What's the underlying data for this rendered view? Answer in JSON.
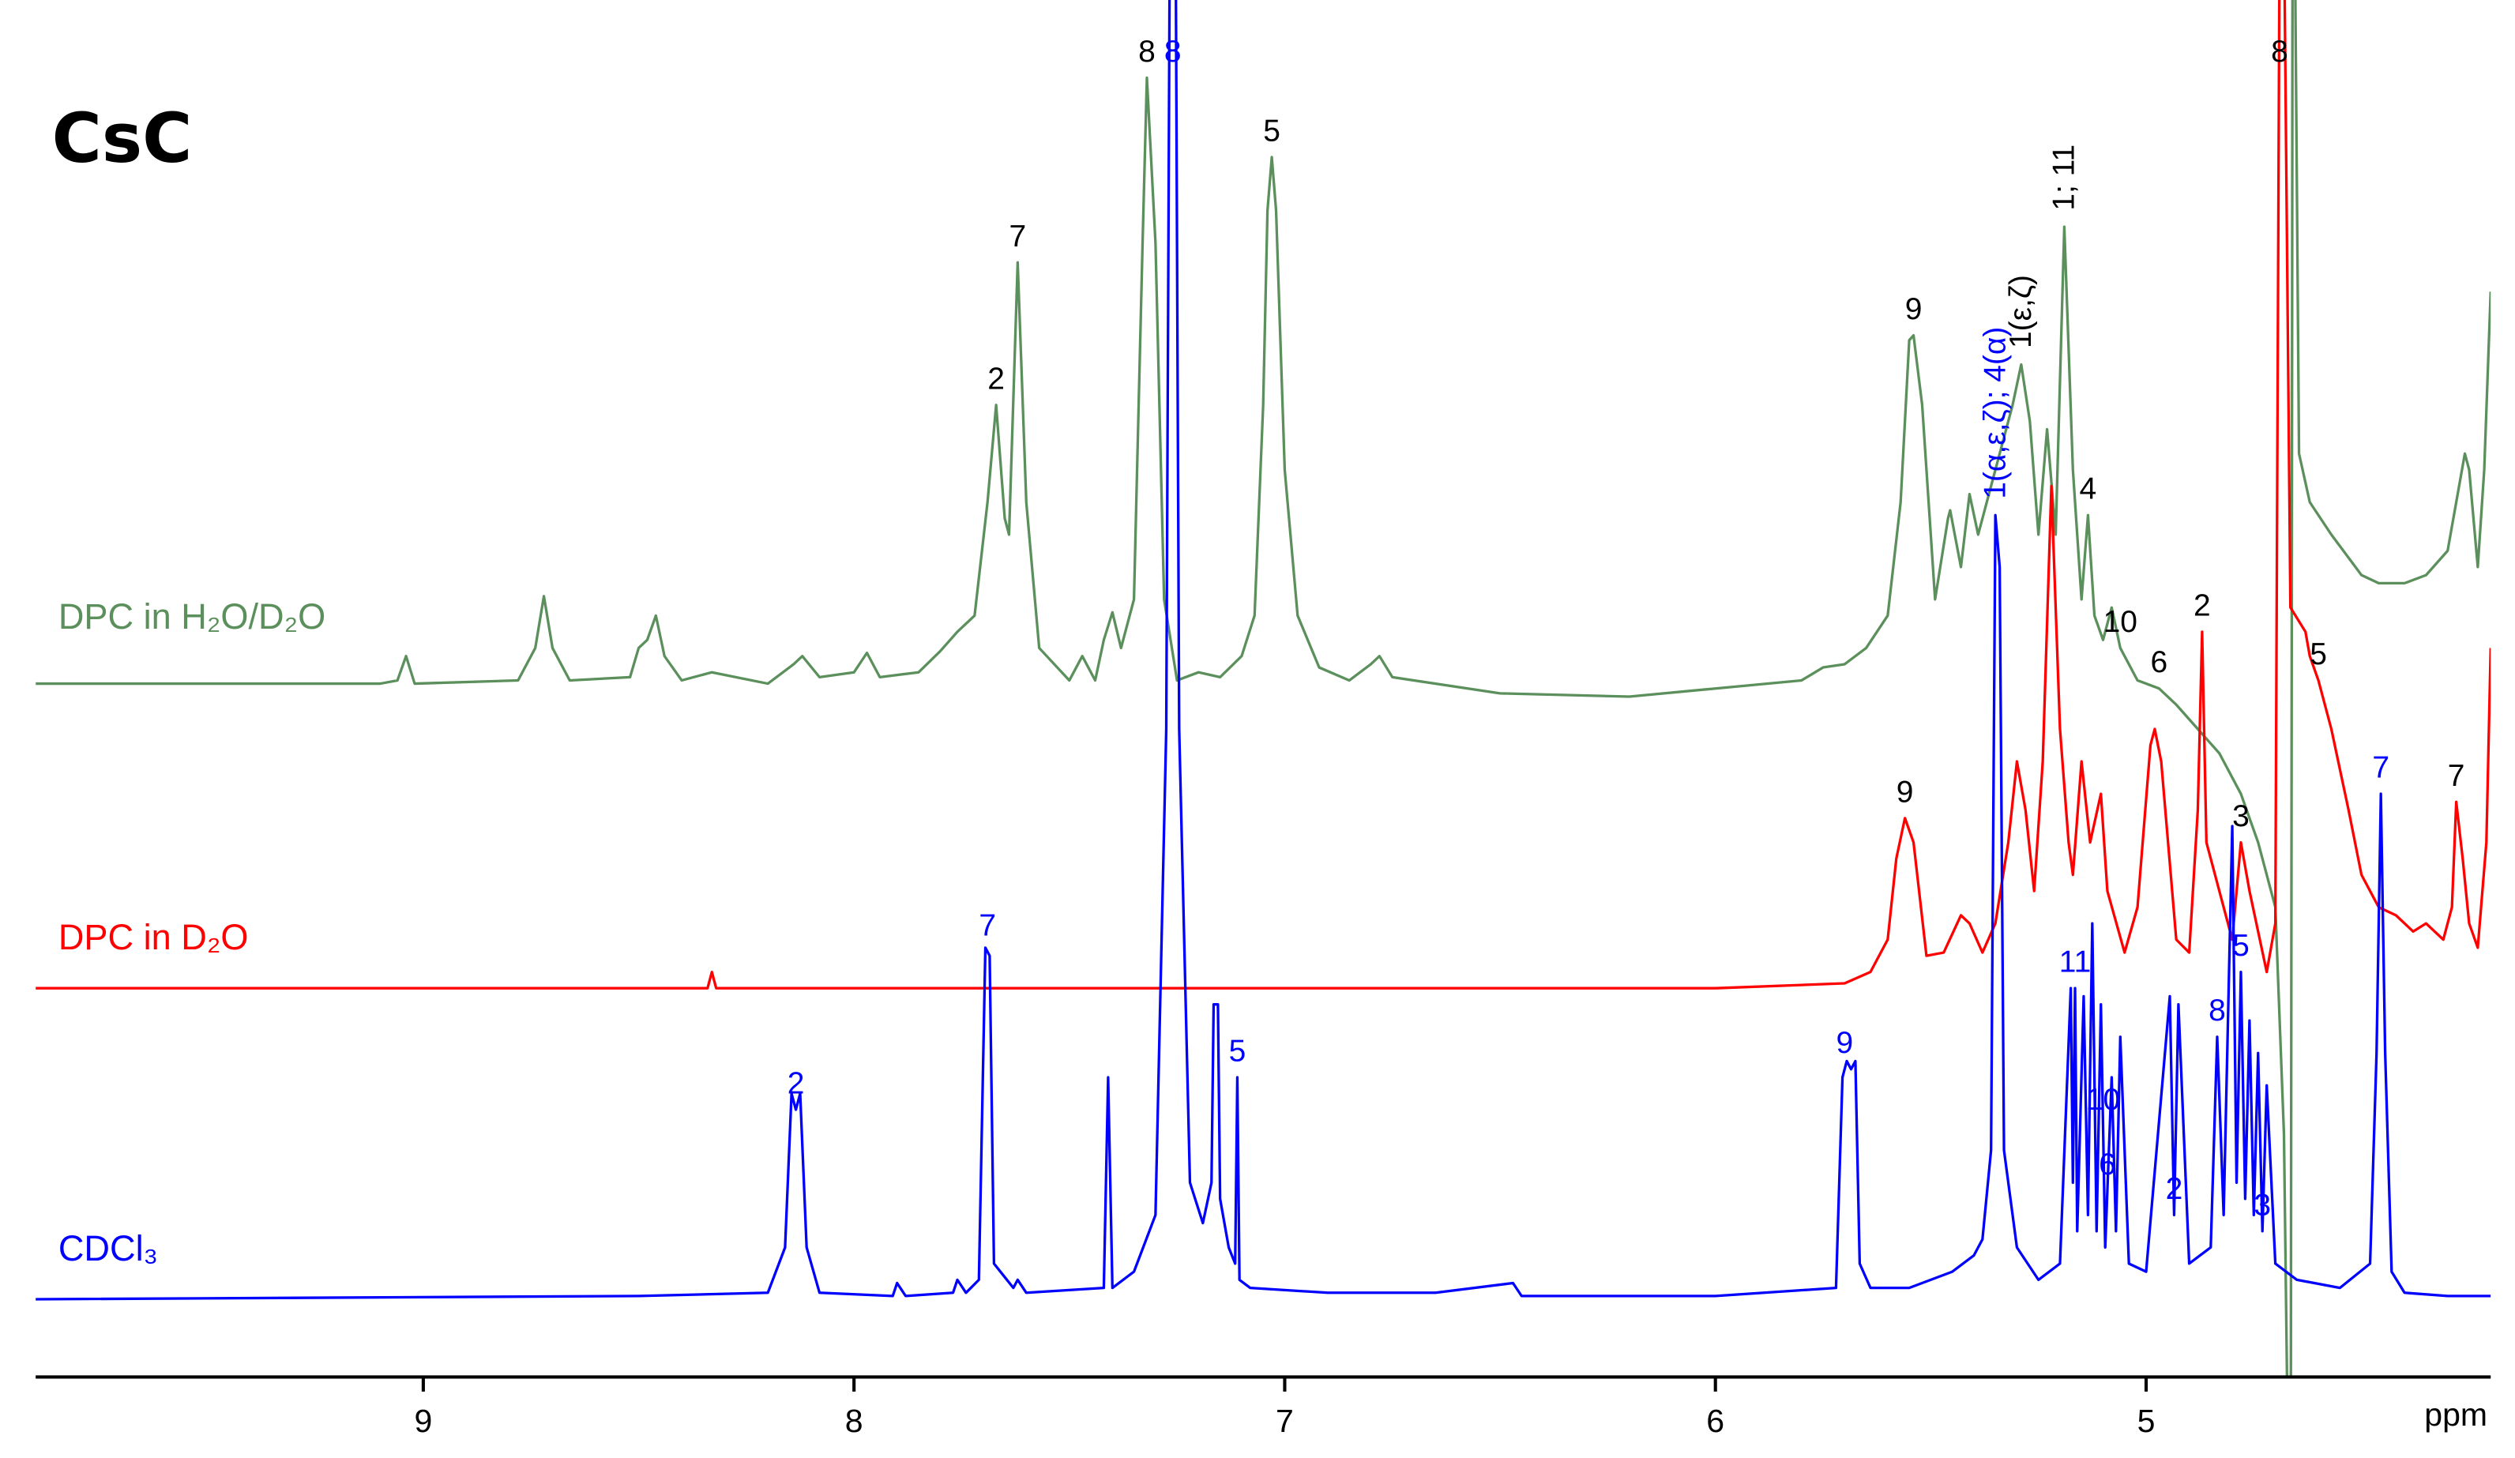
{
  "chart_data": {
    "type": "line",
    "title": "CsC",
    "x_label": "ppm",
    "xlim": [
      9.9,
      4.2
    ],
    "xticks": [
      9,
      8,
      7,
      6,
      5
    ],
    "ylim": [
      0,
      830
    ],
    "series": [
      {
        "name": "DPC in H₂O/D₂O",
        "color": "#5b8f5b",
        "label_color": "#000000",
        "x": [
          9.9,
          9.1,
          9.06,
          9.04,
          9.02,
          8.78,
          8.74,
          8.72,
          8.7,
          8.66,
          8.52,
          8.5,
          8.48,
          8.46,
          8.44,
          8.4,
          8.33,
          8.2,
          8.14,
          8.12,
          8.08,
          8.0,
          7.97,
          7.94,
          7.85,
          7.8,
          7.76,
          7.72,
          7.69,
          7.67,
          7.65,
          7.64,
          7.62,
          7.6,
          7.57,
          7.5,
          7.47,
          7.44,
          7.42,
          7.4,
          7.38,
          7.35,
          7.33,
          7.32,
          7.3,
          7.28,
          7.25,
          7.2,
          7.15,
          7.1,
          7.07,
          7.05,
          7.04,
          7.03,
          7.02,
          7.0,
          6.97,
          6.92,
          6.85,
          6.8,
          6.78,
          6.75,
          6.5,
          6.2,
          6.0,
          5.8,
          5.75,
          5.7,
          5.65,
          5.6,
          5.57,
          5.55,
          5.54,
          5.52,
          5.49,
          5.46,
          5.455,
          5.43,
          5.41,
          5.39,
          5.35,
          5.31,
          5.29,
          5.27,
          5.25,
          5.23,
          5.21,
          5.19,
          5.17,
          5.15,
          5.135,
          5.12,
          5.1,
          5.08,
          5.06,
          5.02,
          4.97,
          4.93,
          4.88,
          4.83,
          4.78,
          4.74,
          4.7,
          4.68,
          4.672,
          4.664,
          4.66,
          4.655,
          4.645,
          4.62,
          4.57,
          4.5,
          4.46,
          4.4,
          4.35,
          4.3,
          4.28,
          4.26,
          4.25,
          4.23,
          4.215,
          4.2
        ],
        "values": [
          428,
          428,
          430,
          445,
          428,
          430,
          450,
          482,
          450,
          430,
          432,
          450,
          455,
          470,
          445,
          430,
          435,
          428,
          440,
          445,
          432,
          435,
          447,
          432,
          435,
          448,
          460,
          470,
          540,
          600,
          530,
          520,
          688,
          540,
          450,
          430,
          445,
          430,
          455,
          472,
          450,
          480,
          700,
          802,
          700,
          480,
          430,
          435,
          432,
          445,
          470,
          600,
          720,
          753,
          720,
          560,
          470,
          438,
          430,
          440,
          445,
          432,
          422,
          420,
          425,
          430,
          438,
          440,
          450,
          470,
          540,
          640,
          643,
          600,
          480,
          530,
          535,
          500,
          545,
          520,
          560,
          600,
          625,
          590,
          520,
          585,
          520,
          710,
          560,
          480,
          532,
          470,
          455,
          475,
          450,
          430,
          425,
          415,
          400,
          385,
          360,
          330,
          290,
          150,
          -20,
          -20,
          900,
          900,
          570,
          540,
          520,
          495,
          490,
          490,
          495,
          510,
          540,
          570,
          560,
          500,
          560,
          670
        ],
        "labels": [
          {
            "text": "2",
            "x": 7.67
          },
          {
            "text": "7",
            "x": 7.62
          },
          {
            "text": "8",
            "x": 7.32
          },
          {
            "text": "5",
            "x": 7.03
          },
          {
            "text": "9",
            "x": 5.54
          },
          {
            "text": "1(ε,ζ)",
            "x": 5.29,
            "vertical": true
          },
          {
            "text": "1; 11",
            "x": 5.19,
            "vertical": true
          },
          {
            "text": "4",
            "x": 5.135
          },
          {
            "text": "10",
            "x": 5.06
          },
          {
            "text": "6",
            "x": 4.97
          }
        ]
      },
      {
        "name": "DPC in D₂O",
        "color": "#ff0000",
        "label_color": "#000000",
        "x": [
          9.9,
          9.0,
          8.34,
          8.33,
          8.32,
          7.6,
          6.0,
          5.7,
          5.64,
          5.6,
          5.58,
          5.56,
          5.54,
          5.51,
          5.47,
          5.43,
          5.41,
          5.38,
          5.35,
          5.32,
          5.3,
          5.28,
          5.26,
          5.24,
          5.22,
          5.2,
          5.18,
          5.17,
          5.15,
          5.13,
          5.105,
          5.09,
          5.05,
          5.02,
          4.99,
          4.98,
          4.965,
          4.93,
          4.9,
          4.88,
          4.87,
          4.86,
          4.83,
          4.8,
          4.78,
          4.76,
          4.72,
          4.7,
          4.69,
          4.68,
          4.665,
          4.63,
          4.62,
          4.6,
          4.57,
          4.53,
          4.5,
          4.46,
          4.42,
          4.38,
          4.35,
          4.31,
          4.29,
          4.28,
          4.265,
          4.25,
          4.23,
          4.21,
          4.2
        ],
        "values": [
          240,
          240,
          240,
          250,
          240,
          240,
          240,
          243,
          250,
          270,
          320,
          345,
          330,
          260,
          262,
          285,
          280,
          262,
          280,
          330,
          380,
          350,
          300,
          380,
          550,
          400,
          330,
          310,
          380,
          330,
          360,
          300,
          262,
          290,
          390,
          400,
          380,
          270,
          262,
          350,
          460,
          330,
          300,
          270,
          330,
          300,
          250,
          280,
          900,
          900,
          475,
          460,
          445,
          430,
          400,
          350,
          310,
          290,
          285,
          275,
          280,
          270,
          290,
          355,
          320,
          280,
          265,
          330,
          450
        ],
        "labels": [
          {
            "text": "9",
            "x": 5.56
          },
          {
            "text": "2",
            "x": 4.87
          },
          {
            "text": "3",
            "x": 4.78
          },
          {
            "text": "8",
            "x": 4.69
          },
          {
            "text": "5",
            "x": 4.6
          },
          {
            "text": "7",
            "x": 4.28
          }
        ]
      },
      {
        "name": "CDCl₃",
        "color": "#0000ff",
        "label_color": "#0000ff",
        "x": [
          9.9,
          8.5,
          8.2,
          8.16,
          8.145,
          8.135,
          8.125,
          8.11,
          8.08,
          7.91,
          7.9,
          7.88,
          7.77,
          7.76,
          7.74,
          7.71,
          7.695,
          7.685,
          7.675,
          7.63,
          7.62,
          7.6,
          7.42,
          7.41,
          7.4,
          7.35,
          7.3,
          7.275,
          7.265,
          7.255,
          7.245,
          7.22,
          7.19,
          7.17,
          7.165,
          7.155,
          7.15,
          7.13,
          7.115,
          7.11,
          7.105,
          7.08,
          6.9,
          6.65,
          6.47,
          6.45,
          6.0,
          5.72,
          5.705,
          5.695,
          5.685,
          5.675,
          5.665,
          5.64,
          5.55,
          5.5,
          5.45,
          5.4,
          5.38,
          5.36,
          5.35,
          5.34,
          5.33,
          5.3,
          5.25,
          5.2,
          5.175,
          5.17,
          5.165,
          5.16,
          5.145,
          5.135,
          5.125,
          5.115,
          5.105,
          5.095,
          5.08,
          5.07,
          5.06,
          5.04,
          5.0,
          4.945,
          4.935,
          4.925,
          4.9,
          4.85,
          4.835,
          4.82,
          4.8,
          4.79,
          4.78,
          4.77,
          4.76,
          4.75,
          4.74,
          4.73,
          4.72,
          4.7,
          4.65,
          4.55,
          4.48,
          4.465,
          4.455,
          4.445,
          4.43,
          4.4,
          4.3,
          4.2
        ],
        "values": [
          48,
          50,
          52,
          80,
          175,
          165,
          175,
          80,
          52,
          50,
          58,
          50,
          52,
          60,
          52,
          60,
          265,
          260,
          70,
          55,
          60,
          52,
          55,
          185,
          55,
          65,
          100,
          400,
          1000,
          1000,
          400,
          120,
          95,
          120,
          230,
          230,
          110,
          80,
          70,
          185,
          60,
          55,
          52,
          52,
          58,
          50,
          50,
          55,
          185,
          195,
          190,
          195,
          70,
          55,
          55,
          60,
          65,
          75,
          85,
          140,
          532,
          500,
          140,
          80,
          60,
          70,
          240,
          120,
          240,
          90,
          235,
          100,
          280,
          90,
          230,
          80,
          185,
          90,
          210,
          70,
          65,
          235,
          100,
          230,
          70,
          80,
          210,
          100,
          340,
          120,
          250,
          110,
          220,
          100,
          200,
          90,
          180,
          70,
          60,
          55,
          70,
          200,
          360,
          200,
          65,
          52,
          50,
          50
        ],
        "labels": [
          {
            "text": "2",
            "x": 8.135
          },
          {
            "text": "7",
            "x": 7.69
          },
          {
            "text": "8",
            "x": 7.26
          },
          {
            "text": "5",
            "x": 7.11
          },
          {
            "text": "9",
            "x": 5.7
          },
          {
            "text": "1(α,ε,ζ); 4(α)",
            "x": 5.35,
            "vertical": true
          },
          {
            "text": "11",
            "x": 5.165
          },
          {
            "text": "10",
            "x": 5.1
          },
          {
            "text": "6",
            "x": 5.09
          },
          {
            "text": "2",
            "x": 4.935
          },
          {
            "text": "8",
            "x": 4.835
          },
          {
            "text": "5",
            "x": 4.78
          },
          {
            "text": "3",
            "x": 4.73
          },
          {
            "text": "7",
            "x": 4.455
          }
        ]
      }
    ]
  }
}
